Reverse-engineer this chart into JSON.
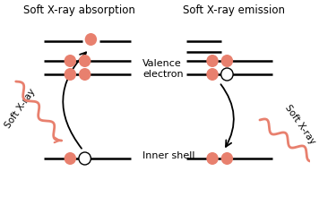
{
  "bg_color": "#ffffff",
  "title_left": "Soft X-ray absorption",
  "title_right": "Soft X-ray emission",
  "electron_color": "#E8806E",
  "line_color": "#000000",
  "xray_color": "#E8806E",
  "text_color": "#000000",
  "valence_label": "Valence\nelectron",
  "inner_label": "Inner shell",
  "xray_label": "Soft X-ray",
  "figw": 3.56,
  "figh": 2.39,
  "dpi": 100
}
